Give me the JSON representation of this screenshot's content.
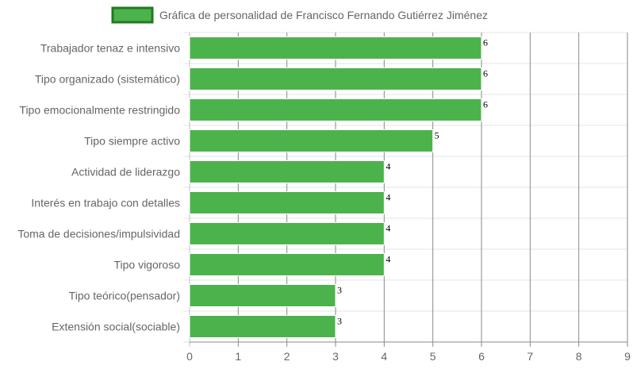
{
  "chart_data": {
    "type": "bar",
    "orientation": "horizontal",
    "categories": [
      "Trabajador tenaz e intensivo",
      "Tipo organizado (sistemático)",
      "Tipo emocionalmente restringido",
      "Tipo siempre activo",
      "Actividad de liderazgo",
      "Interés en trabajo con detalles",
      "Toma de decisiones/impulsividad",
      "Tipo vigoroso",
      "Tipo teórico(pensador)",
      "Extensión social(sociable)"
    ],
    "series": [
      {
        "name": "Gráfica de personalidad de Francisco Fernando Gutiérrez Jiménez",
        "values": [
          6,
          6,
          6,
          5,
          4,
          4,
          4,
          4,
          3,
          3
        ],
        "color": "#4cb34c",
        "border_color": "#1f7a1f"
      }
    ],
    "xlim": [
      0,
      9
    ],
    "x_ticks": [
      "0",
      "1",
      "2",
      "3",
      "4",
      "5",
      "6",
      "7",
      "8",
      "9"
    ],
    "grid": true,
    "legend_position": "top",
    "data_labels": true
  }
}
